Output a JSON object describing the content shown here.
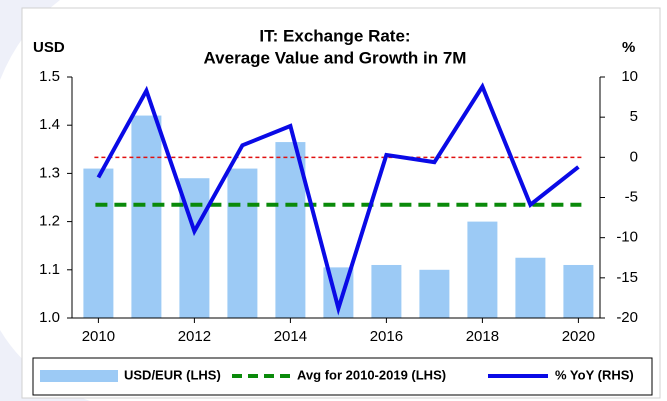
{
  "chart_data": {
    "type": "bar_line",
    "title": "IT: Exchange Rate:",
    "subtitle": "Average Value and Growth in 7M",
    "y_label": "USD",
    "y2_label": "%",
    "x": [
      2010,
      2011,
      2012,
      2013,
      2014,
      2015,
      2016,
      2017,
      2018,
      2019,
      2020
    ],
    "xlim": [
      2009.45,
      2020.45
    ],
    "xticks": [
      2010,
      2012,
      2014,
      2016,
      2018,
      2020
    ],
    "ylim": [
      1.0,
      1.5
    ],
    "yticks": [
      {
        "value": 1.0,
        "label": "1.0"
      },
      1.1,
      1.2,
      1.3,
      1.4,
      {
        "value": 1.5,
        "label": "1.5"
      }
    ],
    "y2lim": [
      -20,
      10
    ],
    "y2ticks": [
      -20,
      -15,
      -10,
      -5,
      0,
      5,
      10
    ],
    "series": [
      {
        "name": "USD/EUR (LHS)",
        "type": "bar",
        "color": "#9ccaf5",
        "values": [
          1.31,
          1.42,
          1.29,
          1.31,
          1.365,
          1.105,
          1.11,
          1.1,
          1.2,
          1.125,
          1.11
        ]
      },
      {
        "name": "% YoY (RHS)",
        "type": "line",
        "axis": "y2",
        "color": "#0a0ae6",
        "values": [
          -2.5,
          8.3,
          -9.2,
          1.5,
          3.9,
          -18.8,
          0.3,
          -0.6,
          8.8,
          -5.9,
          -1.2
        ]
      }
    ],
    "reference": {
      "name": "Avg for 2010-2019 (LHS)",
      "color": "#0a8a0a",
      "value": 1.235
    },
    "zero_line_color": "#e01010",
    "legend": "bottom"
  }
}
